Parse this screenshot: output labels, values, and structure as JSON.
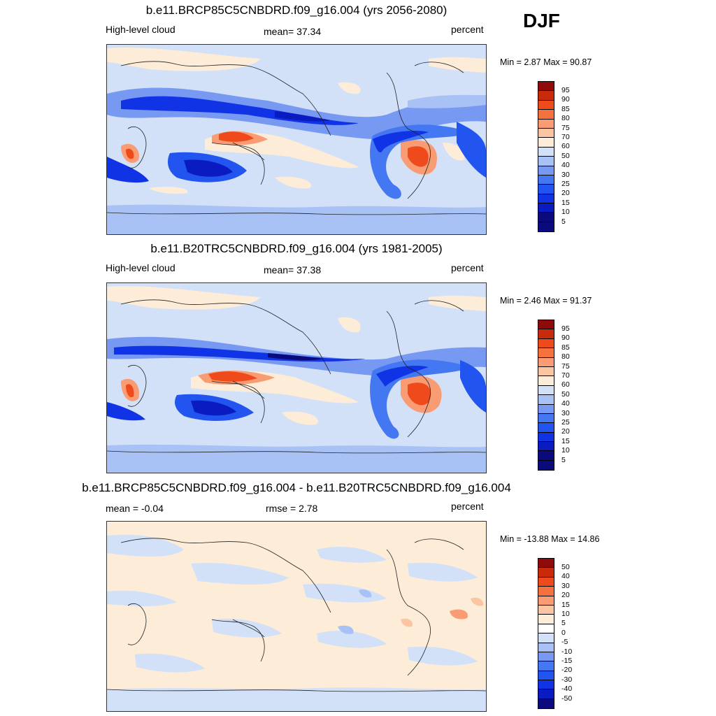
{
  "season": "DJF",
  "colors": {
    "full": [
      "#0a0a7d",
      "#0a1bc2",
      "#1133e6",
      "#2255f0",
      "#4477f2",
      "#7799f2",
      "#a8c2f5",
      "#d2e1f8",
      "#fcecd8",
      "#fbc5a2",
      "#f99b73",
      "#f5723f",
      "#ef4a1b",
      "#c92a0c",
      "#8f0a0a"
    ],
    "diff": [
      "#0a0a7d",
      "#0a1bc2",
      "#1133e6",
      "#2255f0",
      "#4477f2",
      "#7799f2",
      "#a8c2f5",
      "#d2e1f8",
      "#ffffff",
      "#fcecd8",
      "#fbc5a2",
      "#f99b73",
      "#f5723f",
      "#ef4a1b",
      "#c92a0c",
      "#8f0a0a"
    ]
  },
  "panels": [
    {
      "title": "b.e11.BRCP85C5CNBDRD.f09_g16.004 (yrs 2056-2080)",
      "left": "High-level cloud",
      "center": "mean=  37.34",
      "right": "percent",
      "minmax": "Min =   2.87 Max =  90.87",
      "levels": [
        "95",
        "90",
        "85",
        "80",
        "75",
        "70",
        "60",
        "50",
        "40",
        "30",
        "25",
        "20",
        "15",
        "10",
        "5"
      ]
    },
    {
      "title": "b.e11.B20TRC5CNBDRD.f09_g16.004 (yrs 1981-2005)",
      "left": "High-level cloud",
      "center": "mean=  37.38",
      "right": "percent",
      "minmax": "Min =   2.46 Max =  91.37",
      "levels": [
        "95",
        "90",
        "85",
        "80",
        "75",
        "70",
        "60",
        "50",
        "40",
        "30",
        "25",
        "20",
        "15",
        "10",
        "5"
      ]
    },
    {
      "title": "b.e11.BRCP85C5CNBDRD.f09_g16.004 - b.e11.B20TRC5CNBDRD.f09_g16.004",
      "left": "mean =  -0.04",
      "center": "rmse =   2.78",
      "right": "percent",
      "minmax": "Min = -13.88 Max =  14.86",
      "levels": [
        "50",
        "40",
        "30",
        "20",
        "15",
        "10",
        "5",
        "0",
        "-5",
        "-10",
        "-15",
        "-20",
        "-30",
        "-40",
        "-50"
      ]
    }
  ]
}
